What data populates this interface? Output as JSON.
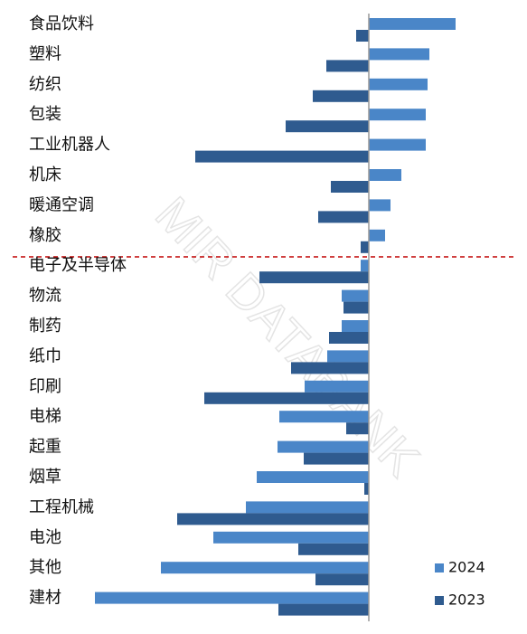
{
  "chart_data": {
    "type": "hbar",
    "watermark": "MIR DATABANK",
    "categories": [
      "食品饮料",
      "塑料",
      "纺织",
      "包装",
      "工业机器人",
      "机床",
      "暖通空调",
      "橡胶",
      "电子及半导体",
      "物流",
      "制药",
      "纸巾",
      "印刷",
      "电梯",
      "起重",
      "烟草",
      "工程机械",
      "电池",
      "其他",
      "建材"
    ],
    "series": [
      {
        "name": "2024",
        "color": "#4a86c8",
        "values": [
          9.6,
          6.7,
          6.5,
          6.3,
          6.3,
          3.6,
          2.4,
          1.8,
          -0.9,
          -3.0,
          -3.0,
          -4.6,
          -7.1,
          -9.9,
          -10.1,
          -12.4,
          -13.6,
          -17.2,
          -23.0,
          -30.3
        ]
      },
      {
        "name": "2023",
        "color": "#2f5b8f",
        "values": [
          -1.4,
          -4.7,
          -6.2,
          -9.2,
          -19.2,
          -4.2,
          -5.6,
          -0.9,
          -12.1,
          -2.8,
          -4.4,
          -8.6,
          -18.2,
          -2.5,
          -7.2,
          -0.5,
          -21.2,
          -7.8,
          -5.9,
          -10.0
        ]
      }
    ],
    "xlim": [
      -31,
      16
    ]
  }
}
